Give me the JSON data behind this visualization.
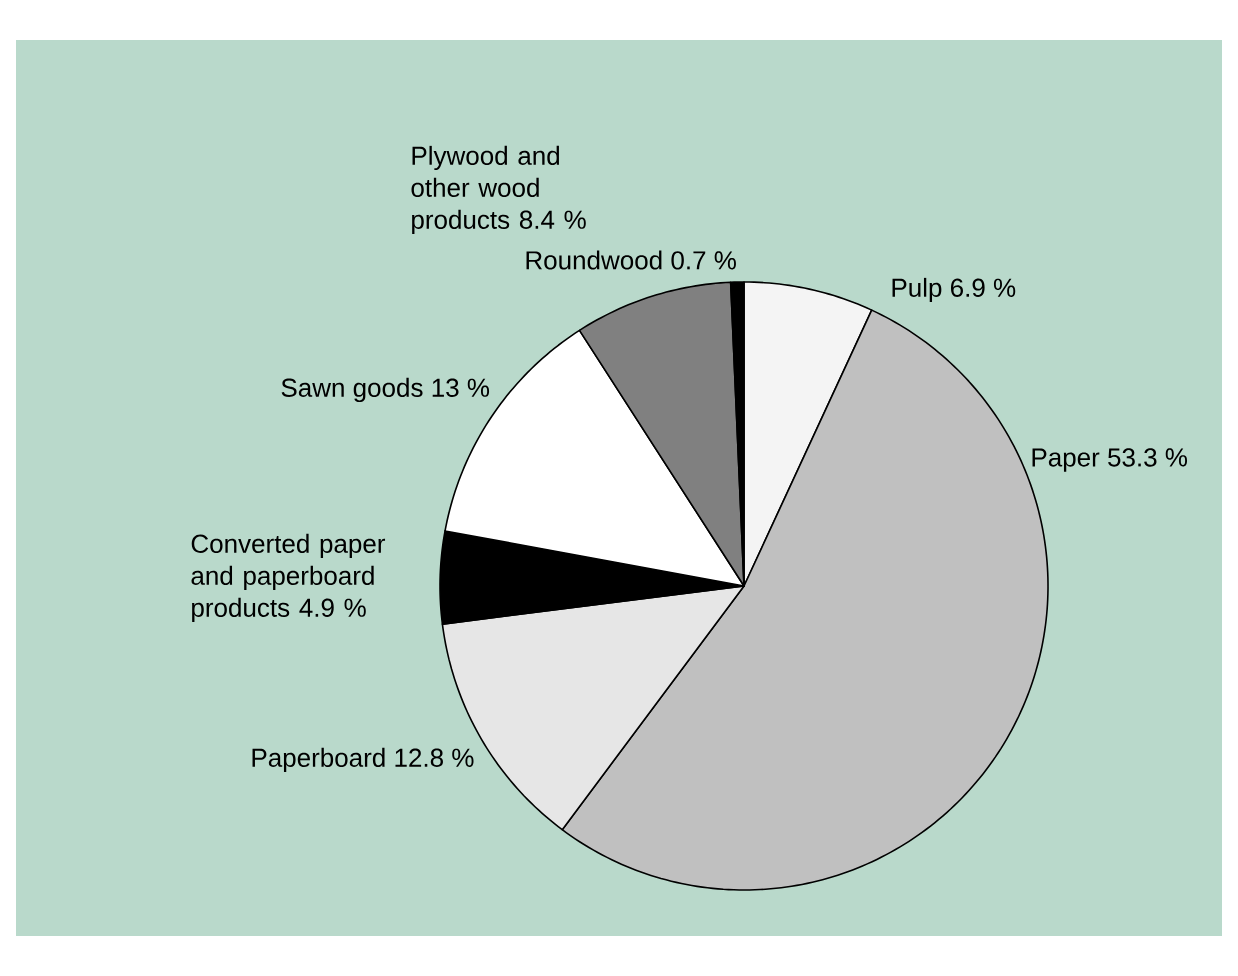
{
  "chart_data": {
    "type": "pie",
    "categories": [
      "Pulp",
      "Paper",
      "Paperboard",
      "Converted paper and paperboard products",
      "Sawn goods",
      "Plywood and other wood products",
      "Roundwood"
    ],
    "values": [
      6.9,
      53.3,
      12.8,
      4.9,
      13,
      8.4,
      0.7
    ],
    "colors": [
      "#f4f4f4",
      "#c0c0c0",
      "#e6e6e6",
      "#000000",
      "#ffffff",
      "#808080",
      "#000000"
    ],
    "value_labels": [
      "6.9 %",
      "53.3 %",
      "12.8 %",
      "4.9 %",
      "13 %",
      "8.4 %",
      "0.7 %"
    ]
  }
}
